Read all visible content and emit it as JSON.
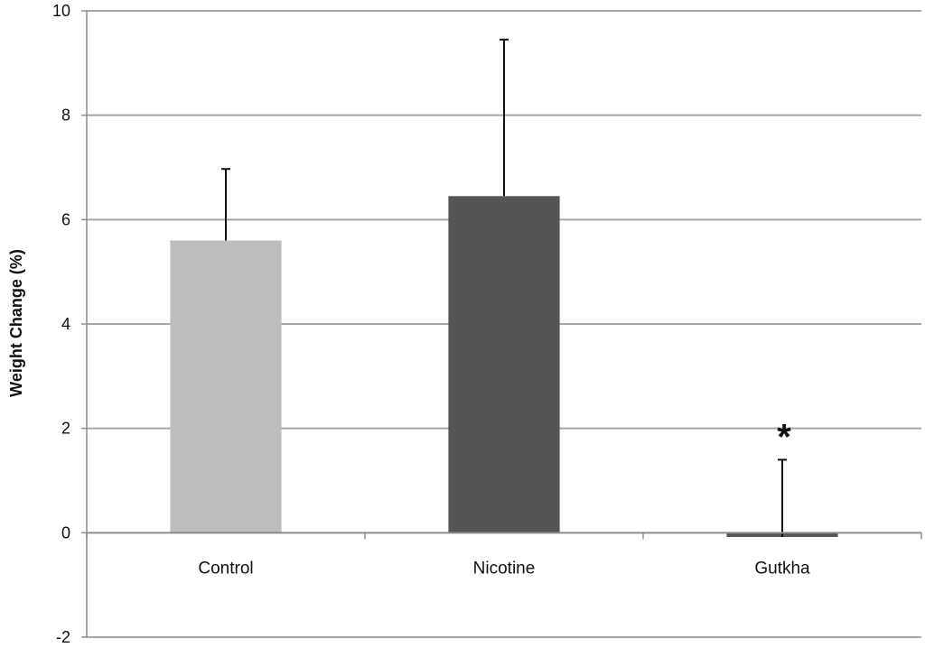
{
  "chart_data": {
    "type": "bar",
    "categories": [
      "Control",
      "Nicotine",
      "Gutkha"
    ],
    "values": [
      5.6,
      6.45,
      -0.08
    ],
    "error_upper": [
      6.97,
      9.45,
      1.4
    ],
    "colors": [
      "#bdbdbd",
      "#555555",
      "#555555"
    ],
    "ylabel": "Weight Change (%)",
    "ylim": [
      -2,
      10
    ],
    "yticks": [
      -2,
      0,
      2,
      4,
      6,
      8,
      10
    ],
    "grid": true,
    "annotations": [
      {
        "text": "*",
        "category": "Gutkha"
      }
    ]
  }
}
